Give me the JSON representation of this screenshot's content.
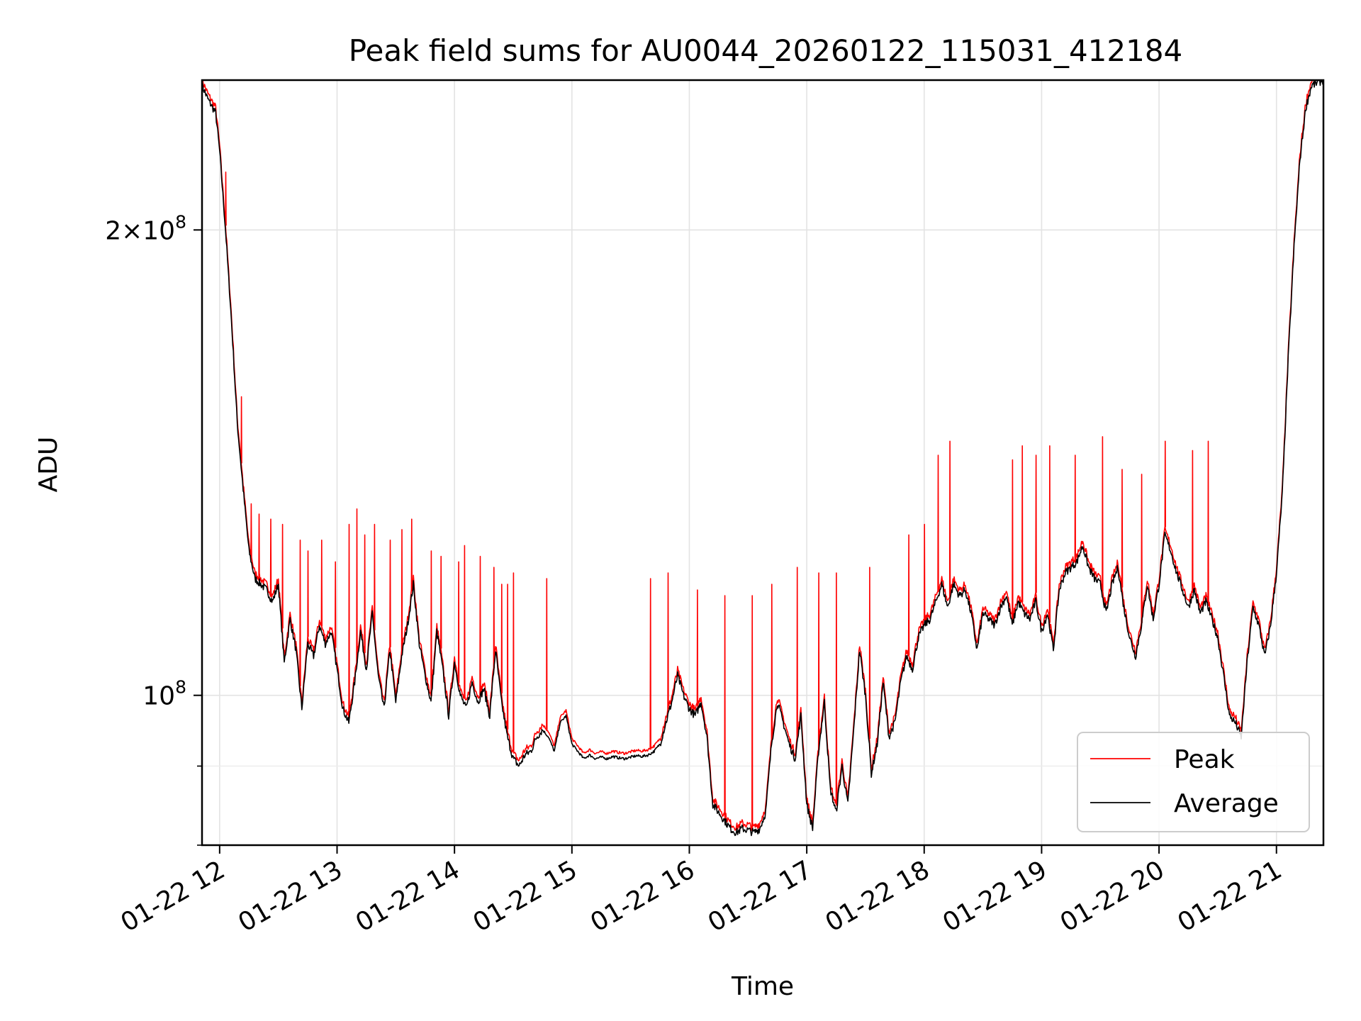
{
  "chart_data": {
    "type": "line",
    "title": "Peak field sums for AU0044_20260122_115031_412184",
    "xlabel": "Time",
    "ylabel": "ADU",
    "x_axis": {
      "kind": "time",
      "range": [
        "2026-01-22 11:51",
        "2026-01-22 21:24"
      ],
      "ticks": [
        "2026-01-22 12:00",
        "2026-01-22 13:00",
        "2026-01-22 14:00",
        "2026-01-22 15:00",
        "2026-01-22 16:00",
        "2026-01-22 17:00",
        "2026-01-22 18:00",
        "2026-01-22 19:00",
        "2026-01-22 20:00",
        "2026-01-22 21:00"
      ],
      "tick_labels": [
        "01-22 12",
        "01-22 13",
        "01-22 14",
        "01-22 15",
        "01-22 16",
        "01-22 17",
        "01-22 18",
        "01-22 19",
        "01-22 20",
        "01-22 21"
      ]
    },
    "y_axis": {
      "scale": "log",
      "range": [
        80000000,
        250000000
      ],
      "major_ticks": [
        100000000,
        200000000
      ],
      "major_labels": [
        {
          "mantissa": "",
          "exp": "8"
        },
        {
          "mantissa": "2",
          "exp": "8"
        }
      ],
      "minor_ticks": [
        90000000,
        80000000
      ]
    },
    "grid": true,
    "legend": {
      "position": "lower right",
      "entries": [
        "Peak",
        "Average"
      ]
    },
    "series": [
      {
        "name": "Average",
        "color": "#000000",
        "points": [
          [
            "11:51",
            248000000
          ],
          [
            "11:54",
            243000000
          ],
          [
            "11:58",
            238000000
          ],
          [
            "12:00",
            225000000
          ],
          [
            "12:03",
            200000000
          ],
          [
            "12:06",
            175000000
          ],
          [
            "12:09",
            150000000
          ],
          [
            "12:12",
            136000000
          ],
          [
            "12:15",
            124000000
          ],
          [
            "12:18",
            119000000
          ],
          [
            "12:21",
            118000000
          ],
          [
            "12:24",
            117000000
          ],
          [
            "12:27",
            115000000
          ],
          [
            "12:30",
            118000000
          ],
          [
            "12:33",
            105000000
          ],
          [
            "12:36",
            112000000
          ],
          [
            "12:39",
            107000000
          ],
          [
            "12:42",
            98000000
          ],
          [
            "12:45",
            108000000
          ],
          [
            "12:48",
            106000000
          ],
          [
            "12:51",
            111000000
          ],
          [
            "12:54",
            108000000
          ],
          [
            "12:57",
            110000000
          ],
          [
            "13:00",
            104000000
          ],
          [
            "13:03",
            98000000
          ],
          [
            "13:06",
            96000000
          ],
          [
            "13:09",
            102000000
          ],
          [
            "13:12",
            110000000
          ],
          [
            "13:15",
            104000000
          ],
          [
            "13:18",
            113000000
          ],
          [
            "13:21",
            103000000
          ],
          [
            "13:24",
            98000000
          ],
          [
            "13:27",
            107000000
          ],
          [
            "13:30",
            99000000
          ],
          [
            "13:33",
            106000000
          ],
          [
            "13:36",
            111000000
          ],
          [
            "13:39",
            118000000
          ],
          [
            "13:42",
            108000000
          ],
          [
            "13:45",
            103000000
          ],
          [
            "13:48",
            99000000
          ],
          [
            "13:51",
            110000000
          ],
          [
            "13:54",
            104000000
          ],
          [
            "13:57",
            97000000
          ],
          [
            "14:00",
            105000000
          ],
          [
            "14:03",
            100000000
          ],
          [
            "14:06",
            98000000
          ],
          [
            "14:09",
            102000000
          ],
          [
            "14:12",
            99000000
          ],
          [
            "14:15",
            101000000
          ],
          [
            "14:18",
            97000000
          ],
          [
            "14:21",
            107000000
          ],
          [
            "14:24",
            99000000
          ],
          [
            "14:27",
            94000000
          ],
          [
            "14:30",
            91000000
          ],
          [
            "14:33",
            90000000
          ],
          [
            "14:36",
            91500000
          ],
          [
            "14:39",
            92000000
          ],
          [
            "14:42",
            94000000
          ],
          [
            "14:45",
            95000000
          ],
          [
            "14:48",
            94000000
          ],
          [
            "14:51",
            92000000
          ],
          [
            "14:54",
            96000000
          ],
          [
            "14:57",
            97000000
          ],
          [
            "15:00",
            93000000
          ],
          [
            "15:03",
            92000000
          ],
          [
            "15:06",
            91000000
          ],
          [
            "15:09",
            91500000
          ],
          [
            "15:12",
            91000000
          ],
          [
            "15:15",
            91200000
          ],
          [
            "15:18",
            91000000
          ],
          [
            "15:21",
            91300000
          ],
          [
            "15:24",
            91100000
          ],
          [
            "15:27",
            91000000
          ],
          [
            "15:30",
            91200000
          ],
          [
            "15:33",
            91400000
          ],
          [
            "15:36",
            91300000
          ],
          [
            "15:39",
            91500000
          ],
          [
            "15:42",
            92000000
          ],
          [
            "15:45",
            93000000
          ],
          [
            "15:48",
            96000000
          ],
          [
            "15:51",
            99000000
          ],
          [
            "15:54",
            103000000
          ],
          [
            "15:57",
            100000000
          ],
          [
            "16:00",
            98000000
          ],
          [
            "16:03",
            97000000
          ],
          [
            "16:06",
            99000000
          ],
          [
            "16:09",
            94000000
          ],
          [
            "16:12",
            85000000
          ],
          [
            "16:15",
            84000000
          ],
          [
            "16:18",
            83000000
          ],
          [
            "16:21",
            82000000
          ],
          [
            "16:24",
            81500000
          ],
          [
            "16:27",
            82000000
          ],
          [
            "16:30",
            81800000
          ],
          [
            "16:33",
            81500000
          ],
          [
            "16:36",
            82000000
          ],
          [
            "16:39",
            84000000
          ],
          [
            "16:42",
            93000000
          ],
          [
            "16:45",
            99000000
          ],
          [
            "16:48",
            96000000
          ],
          [
            "16:51",
            93000000
          ],
          [
            "16:54",
            91000000
          ],
          [
            "16:57",
            97000000
          ],
          [
            "17:00",
            85000000
          ],
          [
            "17:03",
            82000000
          ],
          [
            "17:06",
            92000000
          ],
          [
            "17:09",
            99000000
          ],
          [
            "17:12",
            87000000
          ],
          [
            "17:15",
            84000000
          ],
          [
            "17:18",
            90000000
          ],
          [
            "17:21",
            85000000
          ],
          [
            "17:24",
            95000000
          ],
          [
            "17:27",
            107000000
          ],
          [
            "17:30",
            100000000
          ],
          [
            "17:33",
            89000000
          ],
          [
            "17:36",
            93000000
          ],
          [
            "17:39",
            102000000
          ],
          [
            "17:42",
            94000000
          ],
          [
            "17:45",
            96000000
          ],
          [
            "17:48",
            102000000
          ],
          [
            "17:51",
            106000000
          ],
          [
            "17:54",
            104000000
          ],
          [
            "17:57",
            109000000
          ],
          [
            "18:00",
            111000000
          ],
          [
            "18:03",
            112000000
          ],
          [
            "18:06",
            115000000
          ],
          [
            "18:09",
            118000000
          ],
          [
            "18:12",
            114000000
          ],
          [
            "18:15",
            118000000
          ],
          [
            "18:18",
            116000000
          ],
          [
            "18:21",
            117000000
          ],
          [
            "18:24",
            113000000
          ],
          [
            "18:27",
            107000000
          ],
          [
            "18:30",
            113000000
          ],
          [
            "18:33",
            112000000
          ],
          [
            "18:36",
            111000000
          ],
          [
            "18:39",
            114000000
          ],
          [
            "18:42",
            116000000
          ],
          [
            "18:45",
            111000000
          ],
          [
            "18:48",
            115000000
          ],
          [
            "18:51",
            113000000
          ],
          [
            "18:54",
            112000000
          ],
          [
            "18:57",
            115000000
          ],
          [
            "19:00",
            110000000
          ],
          [
            "19:03",
            113000000
          ],
          [
            "19:06",
            107000000
          ],
          [
            "19:09",
            117000000
          ],
          [
            "19:12",
            120000000
          ],
          [
            "19:15",
            121000000
          ],
          [
            "19:18",
            122000000
          ],
          [
            "19:21",
            125000000
          ],
          [
            "19:24",
            121000000
          ],
          [
            "19:27",
            119000000
          ],
          [
            "19:30",
            118000000
          ],
          [
            "19:33",
            113000000
          ],
          [
            "19:36",
            118000000
          ],
          [
            "19:39",
            121000000
          ],
          [
            "19:42",
            114000000
          ],
          [
            "19:45",
            109000000
          ],
          [
            "19:48",
            106000000
          ],
          [
            "19:51",
            111000000
          ],
          [
            "19:54",
            118000000
          ],
          [
            "19:57",
            112000000
          ],
          [
            "20:00",
            118000000
          ],
          [
            "20:03",
            127000000
          ],
          [
            "20:06",
            124000000
          ],
          [
            "20:09",
            120000000
          ],
          [
            "20:12",
            117000000
          ],
          [
            "20:15",
            114000000
          ],
          [
            "20:18",
            117000000
          ],
          [
            "20:21",
            113000000
          ],
          [
            "20:24",
            115000000
          ],
          [
            "20:27",
            112000000
          ],
          [
            "20:30",
            109000000
          ],
          [
            "20:33",
            103000000
          ],
          [
            "20:36",
            97000000
          ],
          [
            "20:39",
            96000000
          ],
          [
            "20:42",
            94000000
          ],
          [
            "20:45",
            105000000
          ],
          [
            "20:48",
            114000000
          ],
          [
            "20:51",
            111000000
          ],
          [
            "20:54",
            106000000
          ],
          [
            "20:57",
            111000000
          ],
          [
            "21:00",
            120000000
          ],
          [
            "21:03",
            135000000
          ],
          [
            "21:06",
            165000000
          ],
          [
            "21:09",
            195000000
          ],
          [
            "21:12",
            222000000
          ],
          [
            "21:15",
            240000000
          ],
          [
            "21:18",
            248000000
          ],
          [
            "21:24",
            250000000
          ]
        ]
      },
      {
        "name": "Peak",
        "color": "#ff0000",
        "offset_ratio": 1.008,
        "spikes": [
          [
            "12:03",
            218000000
          ],
          [
            "12:11",
            156000000
          ],
          [
            "12:16",
            133000000
          ],
          [
            "12:20",
            131000000
          ],
          [
            "12:26",
            130000000
          ],
          [
            "12:32",
            129000000
          ],
          [
            "12:41",
            126000000
          ],
          [
            "12:45",
            124000000
          ],
          [
            "12:52",
            126000000
          ],
          [
            "12:59",
            122000000
          ],
          [
            "13:06",
            129000000
          ],
          [
            "13:10",
            132000000
          ],
          [
            "13:14",
            127000000
          ],
          [
            "13:19",
            129000000
          ],
          [
            "13:27",
            126000000
          ],
          [
            "13:33",
            128000000
          ],
          [
            "13:38",
            130000000
          ],
          [
            "13:48",
            124000000
          ],
          [
            "13:53",
            123000000
          ],
          [
            "14:02",
            122000000
          ],
          [
            "14:05",
            125000000
          ],
          [
            "14:13",
            123000000
          ],
          [
            "14:20",
            121000000
          ],
          [
            "14:24",
            118000000
          ],
          [
            "14:27",
            118000000
          ],
          [
            "14:30",
            120000000
          ],
          [
            "14:47",
            119000000
          ],
          [
            "15:40",
            119000000
          ],
          [
            "15:49",
            120000000
          ],
          [
            "16:04",
            117000000
          ],
          [
            "16:18",
            116000000
          ],
          [
            "16:32",
            116000000
          ],
          [
            "16:42",
            118000000
          ],
          [
            "16:55",
            121000000
          ],
          [
            "17:06",
            120000000
          ],
          [
            "17:15",
            120000000
          ],
          [
            "17:32",
            121000000
          ],
          [
            "17:52",
            127000000
          ],
          [
            "18:00",
            129000000
          ],
          [
            "18:07",
            143000000
          ],
          [
            "18:13",
            146000000
          ],
          [
            "18:45",
            142000000
          ],
          [
            "18:50",
            145000000
          ],
          [
            "18:57",
            143000000
          ],
          [
            "19:04",
            145000000
          ],
          [
            "19:17",
            143000000
          ],
          [
            "19:31",
            147000000
          ],
          [
            "19:41",
            140000000
          ],
          [
            "19:51",
            139000000
          ],
          [
            "20:03",
            146000000
          ],
          [
            "20:17",
            144000000
          ],
          [
            "20:25",
            146000000
          ]
        ]
      }
    ]
  }
}
